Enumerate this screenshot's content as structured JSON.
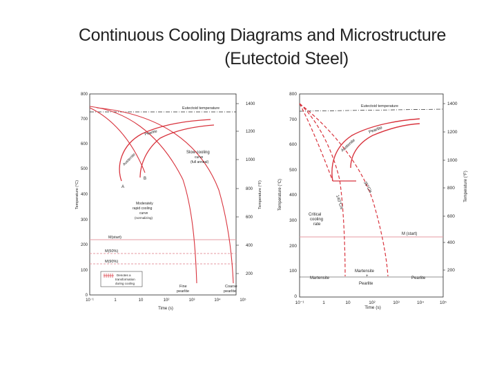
{
  "slide": {
    "title_line1": "Continuous Cooling Diagrams and Microstructure",
    "title_line2": "(Eutectoid Steel)"
  },
  "colors": {
    "curve": "#d8323c",
    "ink": "#222222",
    "guide": "#e69aa0"
  },
  "left_diagram": {
    "y_ticks_c": [
      "800",
      "700",
      "600",
      "500",
      "400",
      "300",
      "200",
      "100",
      "0"
    ],
    "y_ticks_f": [
      "1400",
      "1200",
      "1000",
      "800",
      "600",
      "400",
      "200"
    ],
    "x_ticks": [
      "10⁻¹",
      "1",
      "10",
      "10²",
      "10³",
      "10⁴",
      "10⁵"
    ],
    "y_label_left": "Temperature (°C)",
    "y_label_right": "Temperature (°F)",
    "x_label": "Time (s)",
    "eutectoid": "Eutectoid temperature",
    "austenite": "Austenite",
    "pearlite": "Pearlite",
    "point_a": "A",
    "point_b": "B",
    "slow_cooling": [
      "Slow cooling",
      "curve",
      "(full anneal)"
    ],
    "moderately": [
      "Moderately",
      "rapid cooling",
      "curve",
      "(normalizing)"
    ],
    "m_start": "M(start)",
    "m50": "M(50%)",
    "m90": "M(90%)",
    "legend": [
      "Denotes a",
      "transformation",
      "during cooling"
    ],
    "fine_pearlite": [
      "Fine",
      "pearlite"
    ],
    "coarse_pearlite": [
      "Coarse",
      "pearlite"
    ]
  },
  "right_diagram": {
    "y_ticks_c": [
      "800",
      "700",
      "600",
      "500",
      "400",
      "300",
      "200",
      "100",
      "0"
    ],
    "y_ticks_f": [
      "1400",
      "1200",
      "1000",
      "800",
      "600",
      "400",
      "200"
    ],
    "x_ticks": [
      "10⁻¹",
      "1",
      "10",
      "10²",
      "10³",
      "10⁴",
      "10⁵"
    ],
    "y_label_left": "Temperature (°C)",
    "y_label_right": "Temperature (°F)",
    "x_label": "Time (s)",
    "eutectoid": "Eutectoid temperature",
    "austenite": "Austenite",
    "pearlite": "Pearlite",
    "rate_140": "140°C/s",
    "rate_35": "35°C/s",
    "critical": [
      "Critical",
      "cooling",
      "rate"
    ],
    "m_start": "M (start)",
    "martensite_left": "Martensite",
    "martensite_mid": [
      "Martensite",
      "+",
      "Pearlite"
    ],
    "pearlite_right": "Pearlite"
  }
}
